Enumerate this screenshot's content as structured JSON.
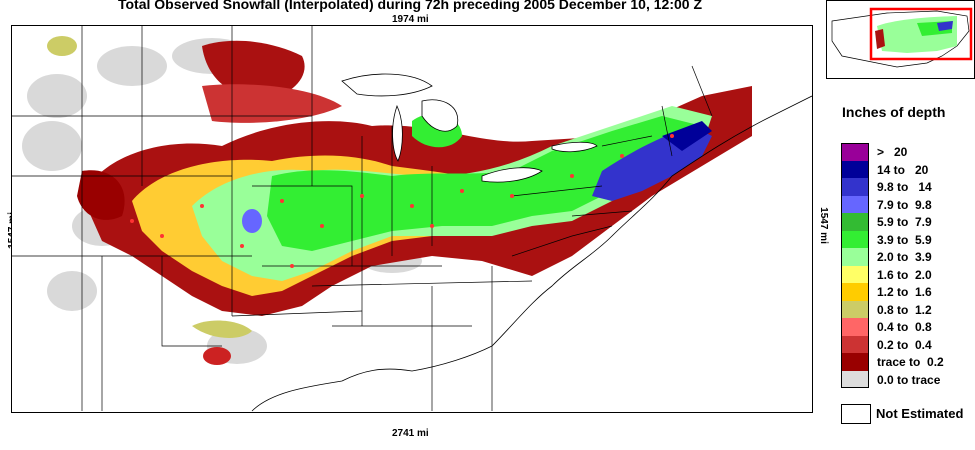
{
  "title": "Total Observed Snowfall (Interpolated) during 72h preceding 2005 December 10, 12:00 Z",
  "scale": {
    "top": "1974 mi",
    "bottom": "2741 mi",
    "left": "1547 mi",
    "right": "1547 mi"
  },
  "legend": {
    "title": "Inches of depth",
    "items": [
      {
        "label": ">   20",
        "color": "#990099"
      },
      {
        "label": "14 to   20",
        "color": "#000099"
      },
      {
        "label": "9.8 to   14",
        "color": "#3333cc"
      },
      {
        "label": "7.9 to  9.8",
        "color": "#6666ff"
      },
      {
        "label": "5.9 to  7.9",
        "color": "#33bb33"
      },
      {
        "label": "3.9 to  5.9",
        "color": "#33ee33"
      },
      {
        "label": "2.0 to  3.9",
        "color": "#99ff99"
      },
      {
        "label": "1.6 to  2.0",
        "color": "#ffff66"
      },
      {
        "label": "1.2 to  1.6",
        "color": "#ffcc00"
      },
      {
        "label": "0.8 to  1.2",
        "color": "#cccc66"
      },
      {
        "label": "0.4 to  0.8",
        "color": "#ff6666"
      },
      {
        "label": "0.2 to  0.4",
        "color": "#cc3333"
      },
      {
        "label": "trace to  0.2",
        "color": "#990000"
      },
      {
        "label": "0.0 to trace",
        "color": "#dddddd"
      }
    ],
    "not_estimated": "Not Estimated"
  }
}
